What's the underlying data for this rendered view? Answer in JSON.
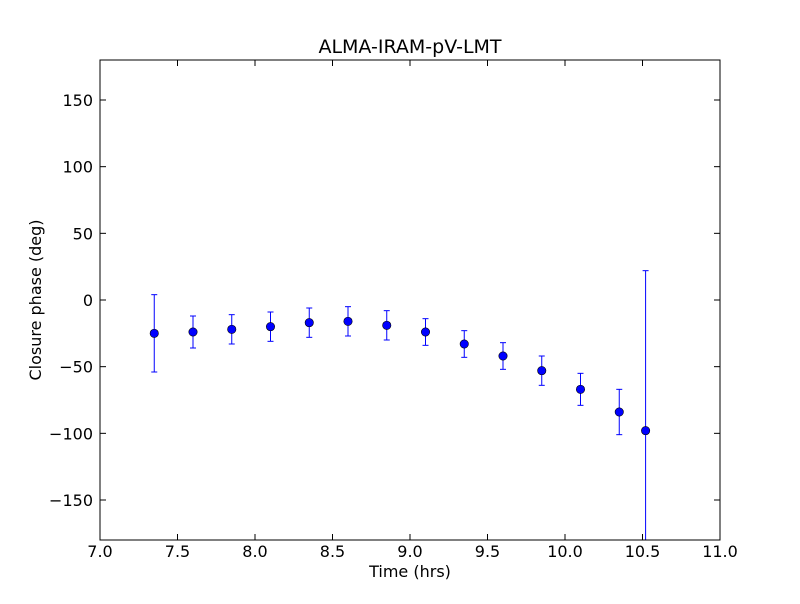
{
  "chart_data": {
    "type": "scatter",
    "title": "ALMA-IRAM-pV-LMT",
    "xlabel": "Time (hrs)",
    "ylabel": "Closure phase (deg)",
    "xlim": [
      7.0,
      11.0
    ],
    "ylim": [
      -180,
      180
    ],
    "xticks": [
      "7.0",
      "7.5",
      "8.0",
      "8.5",
      "9.0",
      "9.5",
      "10.0",
      "10.5",
      "11.0"
    ],
    "yticks": [
      "150",
      "100",
      "50",
      "0",
      "−50",
      "−100",
      "−150"
    ],
    "grid": false,
    "marker_color": "#0000ff",
    "errorbar_color": "#0000ff",
    "series": [
      {
        "x": [
          7.35,
          7.6,
          7.85,
          8.1,
          8.35,
          8.6,
          8.85,
          9.1,
          9.35,
          9.6,
          9.85,
          10.1,
          10.35,
          10.52
        ],
        "y": [
          -25,
          -24,
          -22,
          -20,
          -17,
          -16,
          -19,
          -24,
          -33,
          -42,
          -53,
          -67,
          -84,
          -98
        ],
        "yerr": [
          29,
          12,
          11,
          11,
          11,
          11,
          11,
          10,
          10,
          10,
          11,
          12,
          17,
          120
        ]
      }
    ]
  }
}
